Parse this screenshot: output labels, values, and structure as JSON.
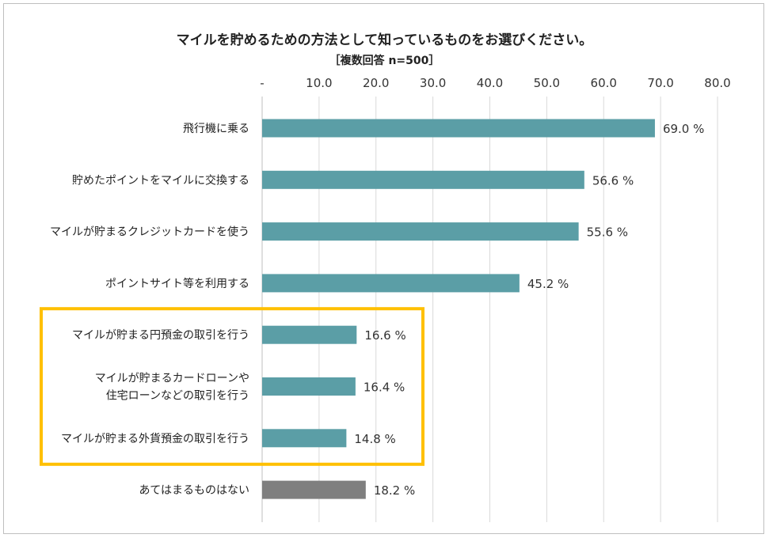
{
  "title": "マイルを貯めるための方法として知っているものをお選びください。",
  "subtitle": "［複数回答 n=500］",
  "chart_data": {
    "type": "bar",
    "orientation": "horizontal",
    "x_ticks": [
      "-",
      "10.0",
      "20.0",
      "30.0",
      "40.0",
      "50.0",
      "60.0",
      "70.0",
      "80.0"
    ],
    "xlim": [
      0,
      80
    ],
    "grid": true,
    "value_suffix": " %",
    "categories": [
      [
        "飛行機に乗る"
      ],
      [
        "貯めたポイントをマイルに交換する"
      ],
      [
        "マイルが貯まるクレジットカードを使う"
      ],
      [
        "ポイントサイト等を利用する"
      ],
      [
        "マイルが貯まる円預金の取引を行う"
      ],
      [
        "マイルが貯まるカードローンや",
        "住宅ローンなどの取引を行う"
      ],
      [
        "マイルが貯まる外貨預金の取引を行う"
      ],
      [
        "あてはまるものはない"
      ]
    ],
    "values": [
      69.0,
      56.6,
      55.6,
      45.2,
      16.6,
      16.4,
      14.8,
      18.2
    ],
    "value_labels": [
      "69.0 %",
      "56.6 %",
      "55.6 %",
      "45.2 %",
      "16.6 %",
      "16.4 %",
      "14.8 %",
      "18.2 %"
    ],
    "bar_colors": [
      "#5b9ea6",
      "#5b9ea6",
      "#5b9ea6",
      "#5b9ea6",
      "#5b9ea6",
      "#5b9ea6",
      "#5b9ea6",
      "#7f7f7f"
    ],
    "highlight": {
      "categories": [
        4,
        5,
        6
      ],
      "color": "#ffc000"
    }
  }
}
